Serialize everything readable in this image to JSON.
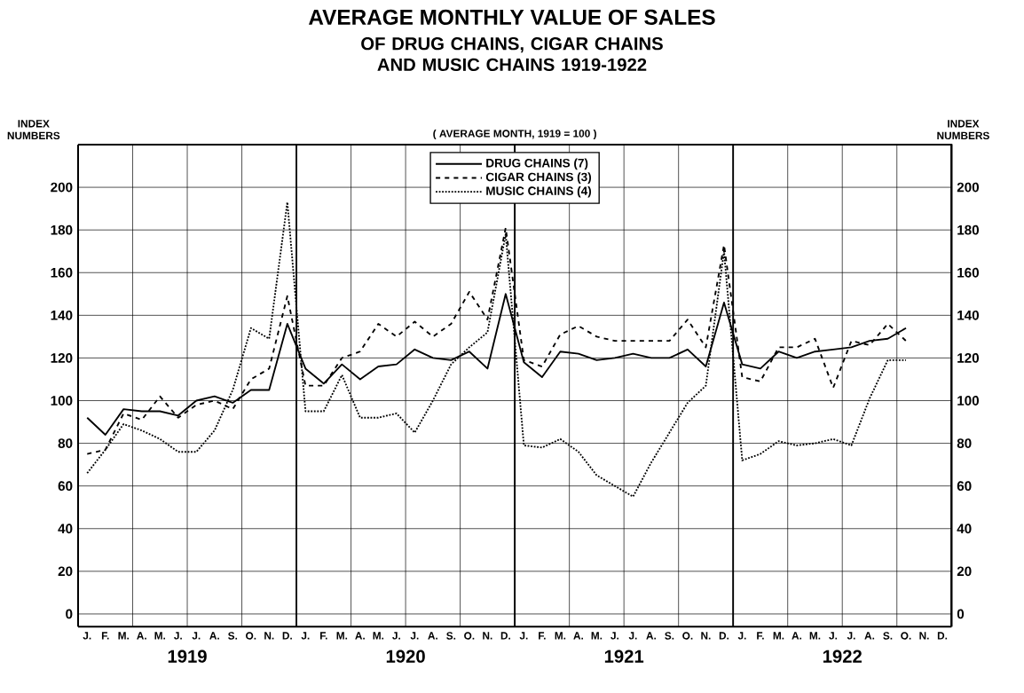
{
  "chart_data": {
    "type": "line",
    "title": "AVERAGE MONTHLY VALUE OF SALES",
    "subtitle": "OF DRUG CHAINS, CIGAR CHAINS AND MUSIC CHAINS 1919-1922",
    "annotations": [
      "( AVERAGE MONTH, 1919 = 100 )",
      "1919",
      "1920",
      "1921",
      "1922"
    ],
    "ylabel": "INDEX NUMBERS",
    "y2label": "INDEX NUMBERS",
    "categories": [
      "J.",
      "F.",
      "M.",
      "A.",
      "M.",
      "J.",
      "J.",
      "A.",
      "S.",
      "O.",
      "N.",
      "D.",
      "J.",
      "F.",
      "M.",
      "A.",
      "M.",
      "J.",
      "J.",
      "A.",
      "S.",
      "O.",
      "N.",
      "D.",
      "J.",
      "F.",
      "M.",
      "A.",
      "M.",
      "J.",
      "J.",
      "A.",
      "S.",
      "O.",
      "N.",
      "D.",
      "J.",
      "F.",
      "M.",
      "A.",
      "M.",
      "J.",
      "J.",
      "A.",
      "S.",
      "O.",
      "N.",
      "D."
    ],
    "series": [
      {
        "name": "DRUG CHAINS (7)",
        "color": "#000000",
        "line_style": "solid",
        "values": [
          92,
          84,
          96,
          95,
          95,
          93,
          100,
          102,
          99,
          105,
          105,
          136,
          115,
          108,
          117,
          110,
          116,
          117,
          124,
          120,
          119,
          123,
          115,
          150,
          118,
          111,
          123,
          122,
          119,
          120,
          122,
          120,
          120,
          124,
          116,
          146,
          117,
          115,
          123,
          120,
          123,
          124,
          125,
          128,
          129,
          134,
          null,
          null
        ]
      },
      {
        "name": "CIGAR CHAINS (3)",
        "color": "#000000",
        "line_style": "dashed",
        "values": [
          75,
          77,
          94,
          91,
          102,
          92,
          98,
          100,
          96,
          110,
          115,
          149,
          107,
          107,
          120,
          123,
          136,
          130,
          137,
          130,
          136,
          151,
          138,
          181,
          119,
          116,
          131,
          135,
          130,
          128,
          128,
          128,
          128,
          138,
          125,
          173,
          111,
          109,
          125,
          125,
          129,
          106,
          128,
          126,
          136,
          128,
          null,
          null
        ]
      },
      {
        "name": "MUSIC CHAINS (4)",
        "color": "#000000",
        "line_style": "dotted",
        "values": [
          66,
          77,
          89,
          86,
          82,
          76,
          76,
          86,
          105,
          134,
          129,
          193,
          95,
          95,
          112,
          92,
          92,
          94,
          85,
          100,
          117,
          125,
          132,
          178,
          79,
          78,
          82,
          76,
          65,
          60,
          55,
          71,
          85,
          99,
          107,
          170,
          72,
          75,
          81,
          79,
          80,
          82,
          79,
          101,
          119,
          119,
          null,
          null
        ]
      }
    ],
    "ylim": [
      -6,
      220
    ],
    "yticks": [
      0,
      20,
      40,
      60,
      80,
      100,
      120,
      140,
      160,
      180,
      200
    ],
    "y2lim": [
      -6,
      220
    ],
    "y2ticks": [
      0,
      20,
      40,
      60,
      80,
      100,
      120,
      140,
      160,
      180,
      200
    ],
    "grid": true,
    "legend": "top",
    "marker": "none"
  }
}
